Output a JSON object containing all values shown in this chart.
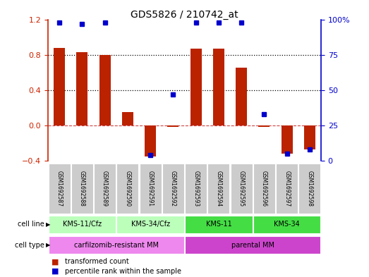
{
  "title": "GDS5826 / 210742_at",
  "samples": [
    "GSM1692587",
    "GSM1692588",
    "GSM1692589",
    "GSM1692590",
    "GSM1692591",
    "GSM1692592",
    "GSM1692593",
    "GSM1692594",
    "GSM1692595",
    "GSM1692596",
    "GSM1692597",
    "GSM1692598"
  ],
  "transformed_count": [
    0.88,
    0.83,
    0.8,
    0.15,
    -0.35,
    -0.02,
    0.87,
    0.87,
    0.65,
    -0.02,
    -0.32,
    -0.27
  ],
  "percentile_rank_values": [
    98,
    97,
    98,
    null,
    4,
    47,
    98,
    98,
    98,
    33,
    5,
    8
  ],
  "ylim_left": [
    -0.4,
    1.2
  ],
  "ylim_right": [
    0,
    100
  ],
  "yticks_left": [
    -0.4,
    0.0,
    0.4,
    0.8,
    1.2
  ],
  "yticks_right": [
    0,
    25,
    50,
    75,
    100
  ],
  "cell_line_groups": [
    {
      "label": "KMS-11/Cfz",
      "start": 0,
      "end": 2,
      "color": "#bbffbb"
    },
    {
      "label": "KMS-34/Cfz",
      "start": 3,
      "end": 5,
      "color": "#bbffbb"
    },
    {
      "label": "KMS-11",
      "start": 6,
      "end": 8,
      "color": "#44dd44"
    },
    {
      "label": "KMS-34",
      "start": 9,
      "end": 11,
      "color": "#44dd44"
    }
  ],
  "cell_type_groups": [
    {
      "label": "carfilzomib-resistant MM",
      "start": 0,
      "end": 5,
      "color": "#ee88ee"
    },
    {
      "label": "parental MM",
      "start": 6,
      "end": 11,
      "color": "#cc44cc"
    }
  ],
  "bar_color": "#bb2200",
  "dot_color": "#0000cc",
  "zero_line_color": "#cc4444",
  "grid_color": "#000000",
  "bg_color": "#ffffff",
  "sample_box_color": "#cccccc",
  "legend_tc": "transformed count",
  "legend_pr": "percentile rank within the sample",
  "left_label_color": "#cc2200",
  "right_label_color": "#0000cc"
}
